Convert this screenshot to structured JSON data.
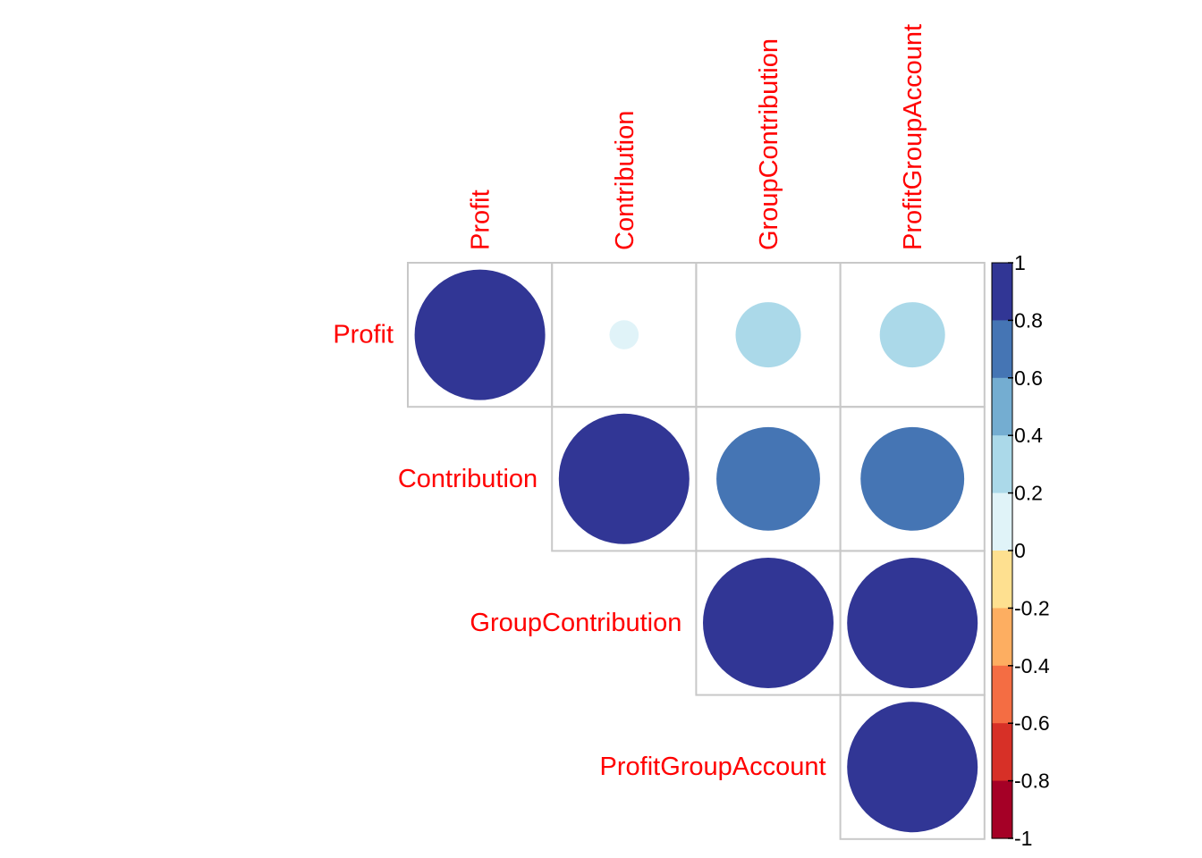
{
  "chart_data": {
    "type": "heatmap",
    "subtype": "correlation-circle-upper",
    "variables": [
      "Profit",
      "Contribution",
      "GroupContribution",
      "ProfitGroupAccount"
    ],
    "matrix": [
      [
        1.0,
        0.05,
        0.25,
        0.25
      ],
      [
        null,
        1.0,
        0.63,
        0.63
      ],
      [
        null,
        null,
        1.0,
        1.0
      ],
      [
        null,
        null,
        null,
        1.0
      ]
    ],
    "label_color": "#ff0000",
    "grid_color": "#c8c8c8",
    "legend": {
      "placement": "right",
      "range": [
        -1,
        1
      ],
      "ticks": [
        "1",
        "0.8",
        "0.6",
        "0.4",
        "0.2",
        "0",
        "-0.2",
        "-0.4",
        "-0.6",
        "-0.8",
        "-1"
      ],
      "bins_top_to_bottom": [
        "#313695",
        "#4575b4",
        "#74add1",
        "#abd9e9",
        "#e0f3f8",
        "#fee090",
        "#fdae61",
        "#f46d43",
        "#d73027",
        "#a50026"
      ]
    }
  }
}
